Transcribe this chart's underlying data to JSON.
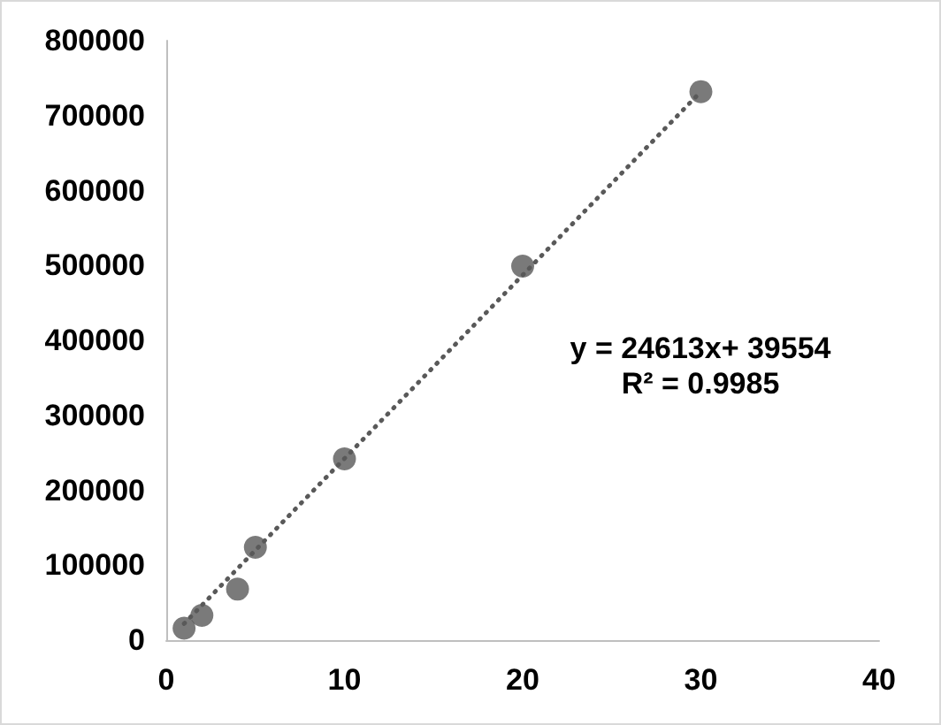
{
  "chart_data": {
    "type": "scatter",
    "marker": "circle",
    "grid": false,
    "xlim": [
      0,
      40
    ],
    "xticks": [
      0,
      10,
      20,
      30,
      40
    ],
    "ylim": [
      0,
      800000
    ],
    "yticks": [
      0,
      100000,
      200000,
      300000,
      400000,
      500000,
      600000,
      700000,
      800000
    ],
    "series": [
      {
        "color": "#595959",
        "x": [
          1,
          2,
          4,
          5,
          10,
          20,
          30
        ],
        "values": [
          16000,
          33000,
          68000,
          124000,
          242000,
          499000,
          732000
        ]
      },
      {
        "type": "line",
        "color": "#595959",
        "line_style": "dotted",
        "marker": "none",
        "x": [
          1,
          30
        ],
        "values": [
          22000,
          732000
        ]
      }
    ],
    "annotations": [
      "y = 24613x+ 39554",
      "R² = 0.9985"
    ]
  }
}
